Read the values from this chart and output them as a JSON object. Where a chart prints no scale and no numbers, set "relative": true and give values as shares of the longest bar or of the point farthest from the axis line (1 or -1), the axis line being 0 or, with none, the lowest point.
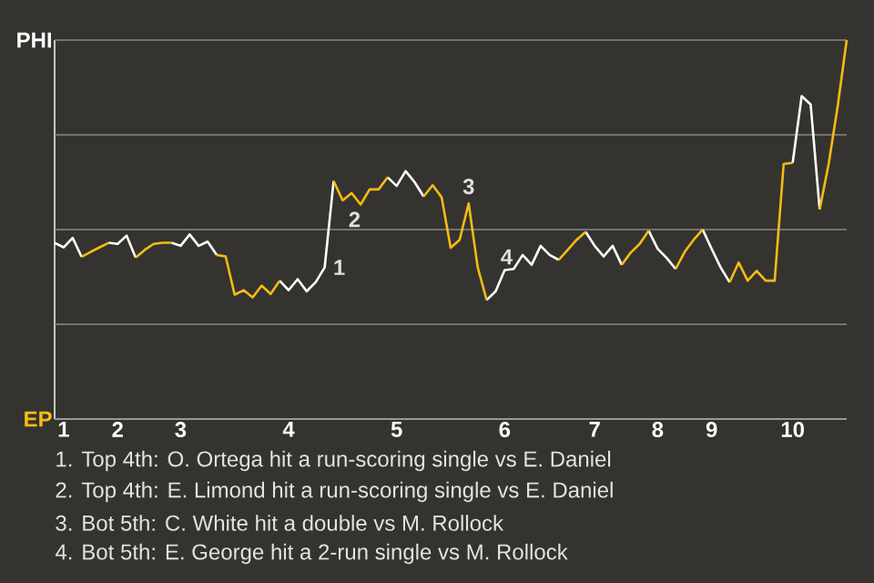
{
  "chart_data": {
    "type": "line",
    "relative": true,
    "categories": [
      null,
      "1",
      null,
      null,
      null,
      null,
      null,
      "2",
      null,
      null,
      null,
      null,
      null,
      null,
      "3",
      null,
      null,
      null,
      null,
      null,
      null,
      null,
      null,
      null,
      null,
      null,
      "4",
      null,
      null,
      null,
      null,
      null,
      null,
      null,
      null,
      null,
      null,
      null,
      "5",
      null,
      null,
      null,
      null,
      null,
      null,
      null,
      null,
      null,
      null,
      null,
      "6",
      null,
      null,
      null,
      null,
      null,
      null,
      null,
      null,
      null,
      "7",
      null,
      null,
      null,
      null,
      null,
      null,
      "8",
      null,
      null,
      null,
      null,
      null,
      "9",
      null,
      null,
      null,
      null,
      null,
      null,
      null,
      null,
      "10",
      null,
      null,
      null,
      null,
      null,
      null
    ],
    "series": [
      {
        "color": "#ffffff",
        "values": [
          0.465,
          0.453,
          0.478,
          0.428,
          null,
          null,
          0.465,
          0.462,
          0.484,
          0.426,
          null,
          null,
          null,
          0.465,
          0.457,
          0.487,
          0.457,
          0.468,
          0.433,
          null,
          null,
          null,
          null,
          null,
          null,
          0.365,
          0.34,
          0.369,
          0.337,
          0.361,
          0.4,
          0.628,
          null,
          null,
          null,
          null,
          null,
          0.638,
          0.615,
          0.654,
          0.625,
          0.587,
          null,
          null,
          null,
          null,
          null,
          null,
          0.314,
          0.337,
          0.393,
          0.396,
          0.433,
          0.407,
          0.457,
          0.433,
          0.42,
          null,
          null,
          0.494,
          0.457,
          0.429,
          0.457,
          0.407,
          null,
          null,
          0.497,
          0.449,
          0.425,
          0.396,
          null,
          null,
          0.5,
          0.449,
          0.4,
          0.361,
          null,
          null,
          null,
          null,
          null,
          null,
          0.676,
          0.852,
          0.83,
          0.553,
          null,
          null,
          null
        ]
      },
      {
        "color": "#f5bc13",
        "values": [
          null,
          null,
          null,
          0.428,
          0.441,
          0.453,
          0.465,
          null,
          null,
          0.426,
          0.446,
          0.462,
          0.465,
          0.465,
          null,
          null,
          null,
          null,
          0.433,
          0.429,
          0.328,
          0.34,
          0.321,
          0.352,
          0.33,
          0.365,
          null,
          null,
          null,
          null,
          null,
          0.628,
          0.577,
          0.596,
          0.566,
          0.606,
          0.606,
          0.638,
          null,
          null,
          null,
          0.587,
          0.617,
          0.585,
          0.452,
          0.473,
          0.569,
          0.401,
          0.314,
          null,
          null,
          null,
          null,
          null,
          null,
          null,
          0.42,
          0.446,
          0.473,
          0.494,
          null,
          null,
          null,
          0.407,
          0.439,
          0.462,
          0.497,
          null,
          null,
          0.396,
          0.441,
          0.473,
          0.5,
          null,
          null,
          0.361,
          0.413,
          0.365,
          0.391,
          0.365,
          0.365,
          0.673,
          0.676,
          null,
          null,
          0.553,
          0.673,
          0.825,
          1.0
        ]
      }
    ],
    "grid": "y",
    "annotations": [
      "PHI",
      "EP",
      "1",
      "2",
      "3",
      "4",
      "1. Top 4th: O. Ortega hit a run-scoring single vs E. Daniel",
      "2. Top 4th: E. Limond hit a run-scoring single vs E. Daniel",
      "3. Bot 5th: C. White hit a double vs M. Rollock",
      "4. Bot 5th: E. George hit a 2-run single vs M. Rollock"
    ]
  }
}
